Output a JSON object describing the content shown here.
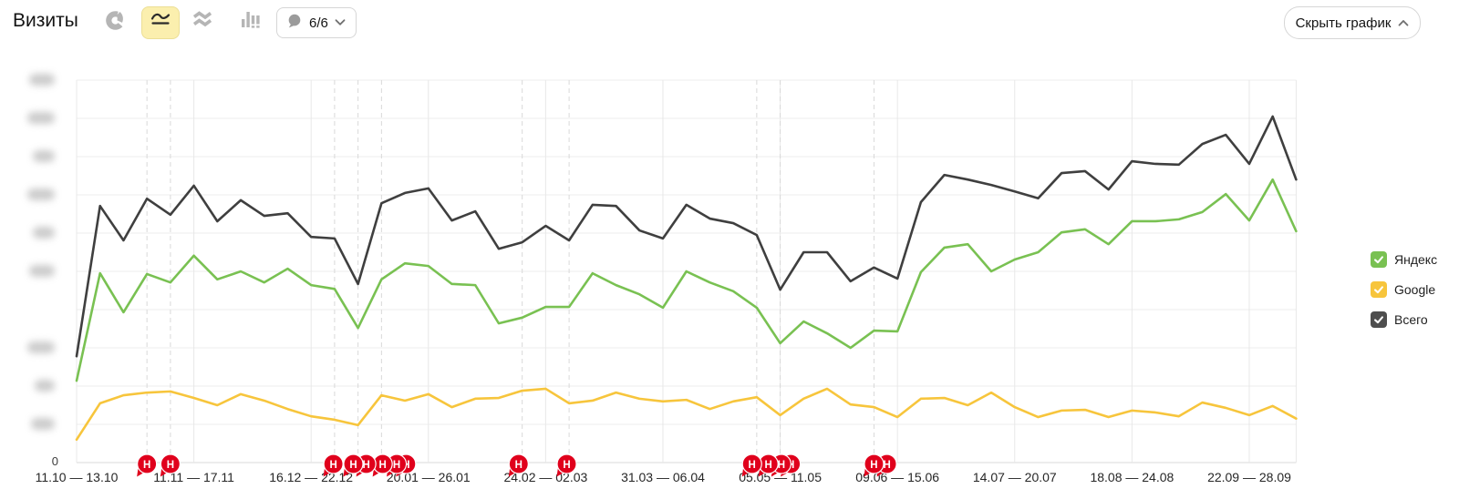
{
  "header": {
    "title": "Визиты",
    "chart_type_buttons": [
      {
        "name": "pie-chart",
        "selected": false
      },
      {
        "name": "line-chart",
        "selected": true
      },
      {
        "name": "stacked-area-chart",
        "selected": false
      },
      {
        "name": "bar-chart",
        "selected": false
      }
    ],
    "comments_dropdown": {
      "icon": "speech-bubble-icon",
      "label": "6/6"
    },
    "hide_button_label": "Скрыть график"
  },
  "legend": {
    "items": [
      {
        "label": "Яндекс",
        "color": "#79c152",
        "checked": true
      },
      {
        "label": "Google",
        "color": "#f7c53c",
        "checked": true
      },
      {
        "label": "Всего",
        "color": "#4e4e4e",
        "checked": true
      }
    ]
  },
  "y_axis": {
    "zero_label": "0",
    "tick_labels_obscured": true
  },
  "chart_data": {
    "type": "line",
    "title": "Визиты",
    "xlabel": "",
    "ylabel": "",
    "ylim": [
      0,
      100
    ],
    "grid": true,
    "legend_position": "right",
    "y_note": "y tick labels are blurred in the source; values are in grid units (10 per gridline)",
    "x_labels": [
      "11.10 — 13.10",
      "11.11 — 17.11",
      "16.12 — 22.12",
      "20.01 — 26.01",
      "24.02 — 02.03",
      "31.03 — 06.04",
      "05.05 — 11.05",
      "09.06 — 15.06",
      "14.07 — 20.07",
      "18.08 — 24.08",
      "22.09 — 28.09"
    ],
    "x_label_every_n_points": 5,
    "series": [
      {
        "name": "Яндекс",
        "color": "#79c152",
        "values": [
          21.4,
          49.5,
          39.3,
          49.3,
          47.1,
          54.1,
          47.9,
          50.0,
          47.1,
          50.7,
          46.4,
          45.4,
          35.2,
          47.9,
          52.1,
          51.4,
          46.7,
          46.4,
          36.4,
          37.9,
          40.7,
          40.7,
          49.5,
          46.4,
          44.0,
          40.5,
          50.0,
          47.1,
          44.8,
          40.5,
          31.2,
          36.9,
          33.8,
          30.0,
          34.5,
          34.3,
          49.8,
          56.2,
          57.1,
          50.0,
          53.1,
          55.0,
          60.2,
          61.0,
          57.1,
          63.1,
          63.1,
          63.6,
          65.5,
          70.2,
          63.3,
          74.0,
          60.5
        ]
      },
      {
        "name": "Google",
        "color": "#f7c53c",
        "values": [
          6.0,
          15.5,
          17.6,
          18.3,
          18.6,
          16.9,
          15.0,
          17.9,
          16.2,
          14.0,
          12.1,
          11.2,
          9.8,
          17.6,
          16.2,
          17.9,
          14.5,
          16.7,
          16.9,
          18.8,
          19.3,
          15.5,
          16.2,
          18.3,
          16.7,
          16.0,
          16.4,
          14.0,
          16.0,
          17.1,
          12.4,
          16.7,
          19.3,
          15.2,
          14.5,
          11.9,
          16.7,
          16.9,
          15.0,
          18.3,
          14.5,
          11.9,
          13.6,
          13.8,
          11.9,
          13.6,
          13.1,
          12.1,
          15.7,
          14.3,
          12.4,
          14.8,
          11.5
        ]
      },
      {
        "name": "Всего",
        "color": "#3f3f3f",
        "values": [
          27.8,
          67.1,
          58.1,
          69.0,
          64.8,
          72.4,
          63.1,
          68.6,
          64.5,
          65.2,
          59.0,
          58.6,
          46.7,
          67.8,
          70.5,
          71.7,
          63.3,
          65.7,
          55.9,
          57.6,
          61.9,
          58.1,
          67.4,
          67.1,
          60.7,
          58.6,
          67.4,
          63.8,
          62.6,
          59.5,
          45.2,
          55.0,
          55.0,
          47.4,
          51.0,
          48.1,
          68.1,
          75.2,
          74.0,
          72.6,
          70.9,
          69.1,
          75.7,
          76.2,
          71.4,
          78.8,
          78.1,
          77.9,
          83.3,
          85.7,
          78.1,
          90.5,
          74.0
        ]
      }
    ],
    "annotations": {
      "letter": "H",
      "color": "#e0001c",
      "dashed_at_points": [
        4,
        5,
        12,
        13,
        14,
        20,
        22,
        30,
        31,
        35
      ],
      "marker_points": [
        4,
        5,
        11.95,
        12.8,
        13.35,
        14.05,
        14.65,
        15.05,
        19.85,
        21.9,
        29.8,
        30.5,
        31.05,
        31.45,
        35,
        35.55
      ]
    }
  }
}
